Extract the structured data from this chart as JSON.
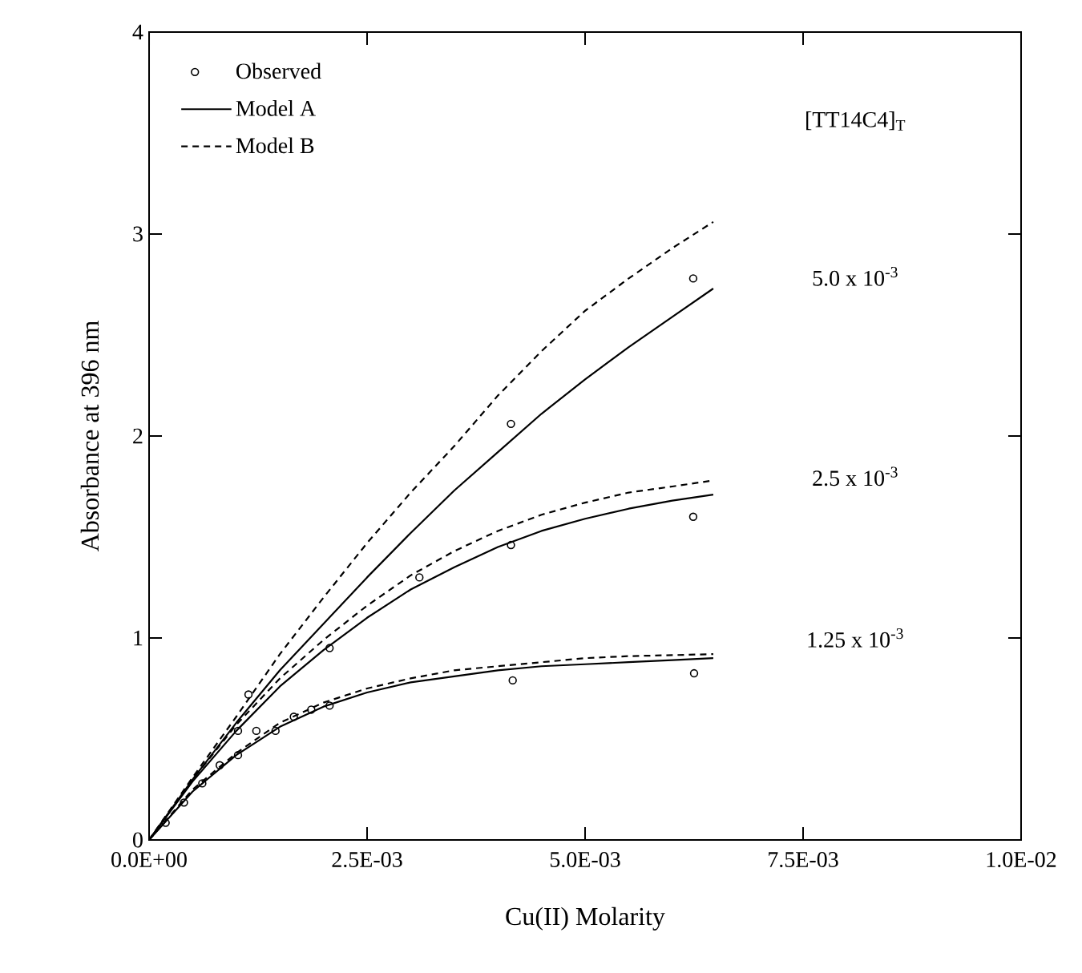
{
  "chart_data": {
    "type": "line",
    "xlabel": "Cu(II) Molarity",
    "ylabel": "Absorbance at 396 nm",
    "xlim": [
      0,
      0.01
    ],
    "ylim": [
      0,
      4
    ],
    "xticks": [
      {
        "value": 0,
        "label": "0.0E+00"
      },
      {
        "value": 0.0025,
        "label": "2.5E-03"
      },
      {
        "value": 0.005,
        "label": "5.0E-03"
      },
      {
        "value": 0.0075,
        "label": "7.5E-03"
      },
      {
        "value": 0.01,
        "label": "1.0E-02"
      }
    ],
    "yticks": [
      0,
      1,
      2,
      3,
      4
    ],
    "legend": "top left",
    "annotations": [
      "[TT14C4]$_{T}$",
      "5.0 x 10$^{-3}$",
      "2.5 x 10$^{-3}$",
      "1.25 x 10$^{-3}$"
    ],
    "series": [
      {
        "name": "Observed",
        "type": "scatter",
        "marker": "circle",
        "color": "#000000",
        "x": [
          0.00019,
          0.0004,
          0.00061,
          0.00081,
          0.00102,
          0.00102,
          0.00114,
          0.00123,
          0.00145,
          0.00166,
          0.00186,
          0.00207,
          0.00207,
          0.0031,
          0.00415,
          0.00624,
          0.00415,
          0.00624,
          0.00417,
          0.00625
        ],
        "values": [
          0.085,
          0.185,
          0.28,
          0.37,
          0.42,
          0.54,
          0.72,
          0.54,
          0.54,
          0.61,
          0.645,
          0.665,
          0.95,
          1.3,
          2.06,
          2.78,
          1.46,
          1.6,
          0.79,
          0.825
        ]
      },
      {
        "name": "Model A",
        "line_style": "solid",
        "color": "#000000",
        "x": [
          0,
          0.0005,
          0.001,
          0.0015,
          0.002,
          0.0025,
          0.003,
          0.0035,
          0.004,
          0.0045,
          0.005,
          0.0055,
          0.006,
          0.00647
        ],
        "values": [
          0,
          0.3,
          0.58,
          0.84,
          1.07,
          1.3,
          1.52,
          1.73,
          1.92,
          2.11,
          2.28,
          2.44,
          2.59,
          2.73
        ]
      },
      {
        "name": "Model B",
        "line_style": "dashed",
        "color": "#000000",
        "x": [
          0,
          0.0005,
          0.001,
          0.0015,
          0.002,
          0.0025,
          0.003,
          0.0035,
          0.004,
          0.0045,
          0.005,
          0.0055,
          0.006,
          0.00647
        ],
        "values": [
          0,
          0.31,
          0.61,
          0.92,
          1.2,
          1.47,
          1.72,
          1.95,
          2.2,
          2.42,
          2.62,
          2.78,
          2.93,
          3.06
        ]
      },
      {
        "line_style": "solid",
        "color": "#000000",
        "x": [
          0,
          0.0005,
          0.001,
          0.0015,
          0.002,
          0.0025,
          0.003,
          0.0035,
          0.004,
          0.0045,
          0.005,
          0.0055,
          0.006,
          0.00647
        ],
        "values": [
          0,
          0.29,
          0.54,
          0.76,
          0.94,
          1.1,
          1.24,
          1.35,
          1.45,
          1.53,
          1.59,
          1.64,
          1.68,
          1.71
        ]
      },
      {
        "line_style": "dashed",
        "color": "#000000",
        "x": [
          0,
          0.0005,
          0.001,
          0.0015,
          0.002,
          0.0025,
          0.003,
          0.0035,
          0.004,
          0.0045,
          0.005,
          0.0055,
          0.006,
          0.00647
        ],
        "values": [
          0,
          0.3,
          0.57,
          0.8,
          0.99,
          1.16,
          1.31,
          1.43,
          1.53,
          1.61,
          1.67,
          1.72,
          1.75,
          1.78
        ]
      },
      {
        "line_style": "solid",
        "color": "#000000",
        "x": [
          0,
          0.0005,
          0.001,
          0.0015,
          0.002,
          0.0025,
          0.003,
          0.0035,
          0.004,
          0.0045,
          0.005,
          0.0055,
          0.006,
          0.00647
        ],
        "values": [
          0,
          0.24,
          0.42,
          0.56,
          0.66,
          0.73,
          0.78,
          0.81,
          0.84,
          0.86,
          0.87,
          0.88,
          0.89,
          0.9
        ]
      },
      {
        "line_style": "dashed",
        "color": "#000000",
        "x": [
          0,
          0.0005,
          0.001,
          0.0015,
          0.002,
          0.0025,
          0.003,
          0.0035,
          0.004,
          0.0045,
          0.005,
          0.0055,
          0.006,
          0.00647
        ],
        "values": [
          0,
          0.25,
          0.43,
          0.58,
          0.68,
          0.75,
          0.8,
          0.84,
          0.86,
          0.88,
          0.9,
          0.91,
          0.915,
          0.92
        ]
      }
    ]
  }
}
